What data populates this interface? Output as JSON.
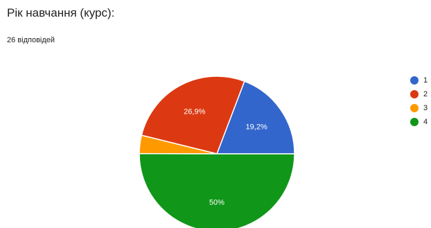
{
  "question": {
    "title": "Рік навчання (курс):",
    "responses": "26 відповідей"
  },
  "chart_data": {
    "type": "pie",
    "categories": [
      "1",
      "2",
      "3",
      "4"
    ],
    "values": [
      19.2,
      26.9,
      3.8,
      50
    ],
    "display_labels": [
      "19,2%",
      "26,9%",
      "",
      "50%"
    ],
    "colors": [
      "#3366cc",
      "#dc3912",
      "#ff9900",
      "#109618"
    ],
    "legend_position": "right"
  }
}
